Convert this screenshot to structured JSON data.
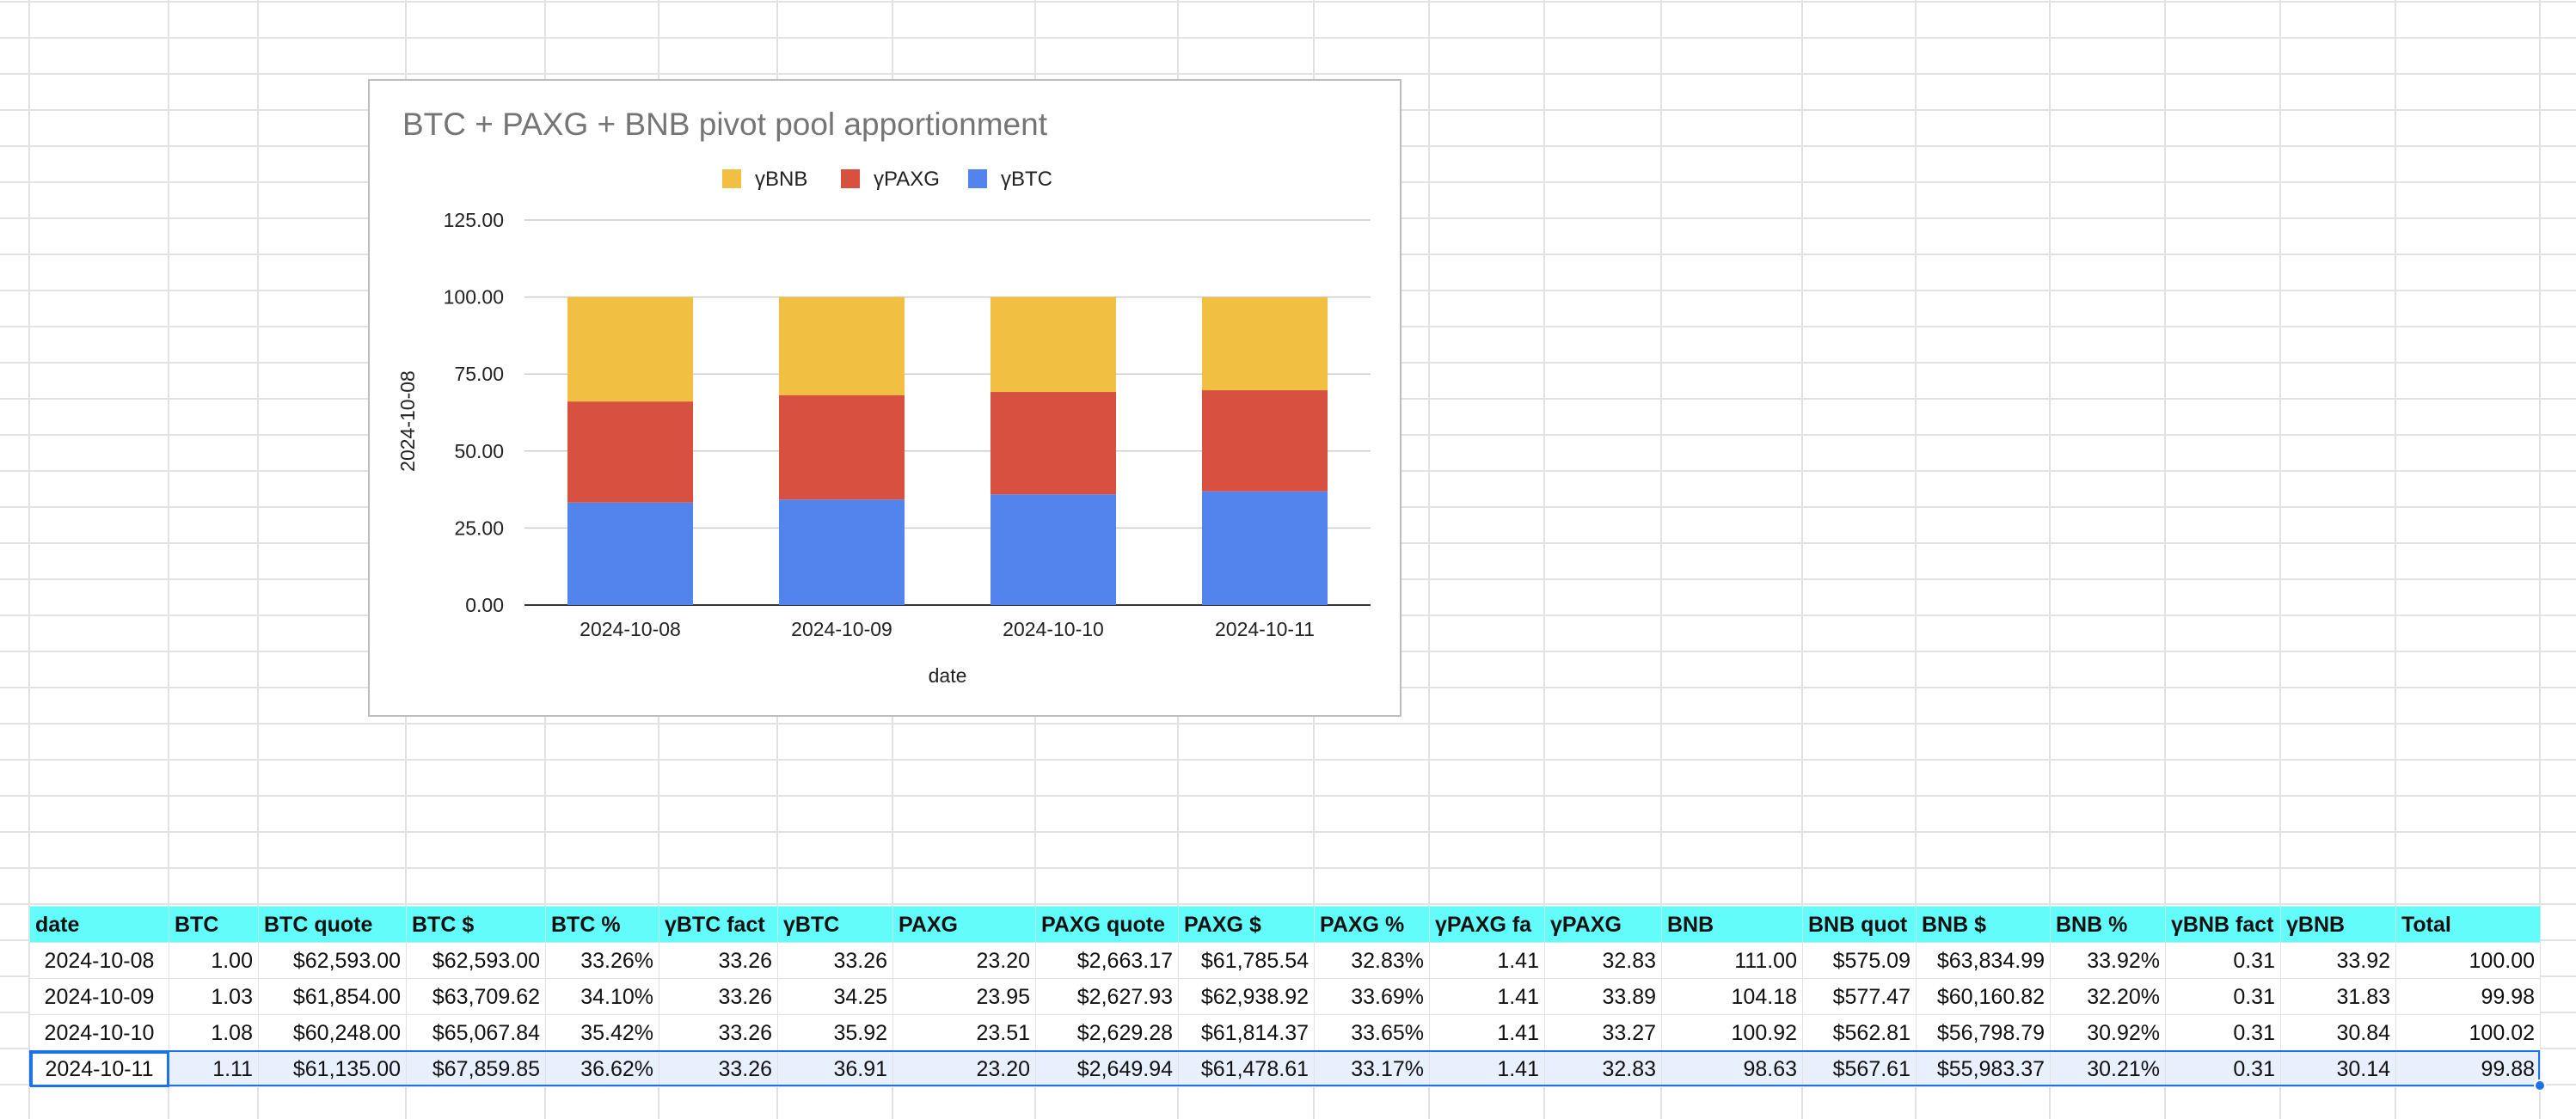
{
  "chart_data": {
    "type": "bar",
    "stacked": true,
    "title": "BTC + PAXG + BNB pivot pool apportionment",
    "xlabel": "date",
    "ylabel": "2024-10-08",
    "categories": [
      "2024-10-08",
      "2024-10-09",
      "2024-10-10",
      "2024-10-11"
    ],
    "yticks": [
      "0.00",
      "25.00",
      "50.00",
      "75.00",
      "100.00",
      "125.00"
    ],
    "ylim": [
      0,
      125
    ],
    "grid": true,
    "legend_position": "top",
    "series": [
      {
        "name": "γBTC",
        "color": "#5383ec",
        "values": [
          33.26,
          34.25,
          35.92,
          36.91
        ]
      },
      {
        "name": "γPAXG",
        "color": "#d85140",
        "values": [
          32.83,
          33.89,
          33.27,
          32.83
        ]
      },
      {
        "name": "γBNB",
        "color": "#f1bf42",
        "values": [
          33.92,
          31.83,
          30.84,
          30.14
        ]
      }
    ],
    "legend_order": [
      "γBNB",
      "γPAXG",
      "γBTC"
    ]
  },
  "table": {
    "headers": [
      "date",
      "BTC",
      "BTC quote",
      "BTC $",
      "BTC %",
      "γBTC fact",
      "γBTC",
      "PAXG",
      "PAXG quote",
      "PAXG $",
      "PAXG %",
      "γPAXG fa",
      "γPAXG",
      "BNB",
      "BNB quot",
      "BNB $",
      "BNB %",
      "γBNB fact",
      "γBNB",
      "Total"
    ],
    "rows": [
      [
        "2024-10-08",
        "1.00",
        "$62,593.00",
        "$62,593.00",
        "33.26%",
        "33.26",
        "33.26",
        "23.20",
        "$2,663.17",
        "$61,785.54",
        "32.83%",
        "1.41",
        "32.83",
        "111.00",
        "$575.09",
        "$63,834.99",
        "33.92%",
        "0.31",
        "33.92",
        "100.00"
      ],
      [
        "2024-10-09",
        "1.03",
        "$61,854.00",
        "$63,709.62",
        "34.10%",
        "33.26",
        "34.25",
        "23.95",
        "$2,627.93",
        "$62,938.92",
        "33.69%",
        "1.41",
        "33.89",
        "104.18",
        "$577.47",
        "$60,160.82",
        "32.20%",
        "0.31",
        "31.83",
        "99.98"
      ],
      [
        "2024-10-10",
        "1.08",
        "$60,248.00",
        "$65,067.84",
        "35.42%",
        "33.26",
        "35.92",
        "23.51",
        "$2,629.28",
        "$61,814.37",
        "33.65%",
        "1.41",
        "33.27",
        "100.92",
        "$562.81",
        "$56,798.79",
        "30.92%",
        "0.31",
        "30.84",
        "100.02"
      ],
      [
        "2024-10-11",
        "1.11",
        "$61,135.00",
        "$67,859.85",
        "36.62%",
        "33.26",
        "36.91",
        "23.20",
        "$2,649.94",
        "$61,478.61",
        "33.17%",
        "1.41",
        "32.83",
        "98.63",
        "$567.61",
        "$55,983.37",
        "30.21%",
        "0.31",
        "30.14",
        "99.88"
      ]
    ],
    "selected_row": 3
  }
}
